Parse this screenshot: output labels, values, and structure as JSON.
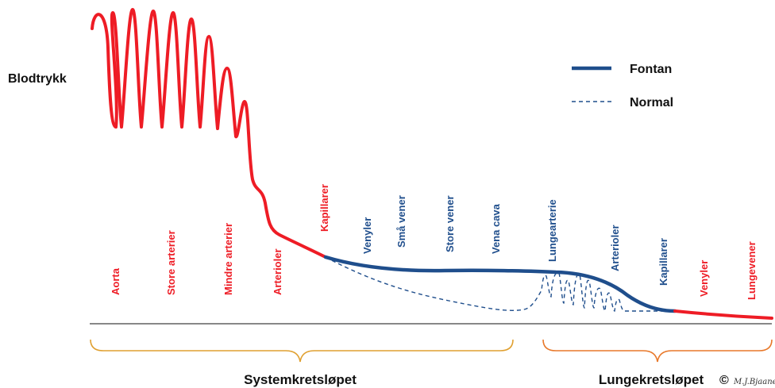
{
  "y_axis_title": "Blodtrykk",
  "legend": {
    "fontan_label": "Fontan",
    "normal_label": "Normal"
  },
  "colors": {
    "red": "#ee1c25",
    "blue": "#1f4e8c",
    "systemic_brace": "#e0a030",
    "pulmonary_brace": "#e8782a"
  },
  "vessels": [
    {
      "label": "Aorta",
      "color": "red"
    },
    {
      "label": "Store arterier",
      "color": "red"
    },
    {
      "label": "Mindre arterier",
      "color": "red"
    },
    {
      "label": "Arterioler",
      "color": "red"
    },
    {
      "label": "Kapillarer",
      "color": "red"
    },
    {
      "label": "Venyler",
      "color": "blue"
    },
    {
      "label": "Små vener",
      "color": "blue"
    },
    {
      "label": "Store vener",
      "color": "blue"
    },
    {
      "label": "Vena cava",
      "color": "blue"
    },
    {
      "label": "Lungearterie",
      "color": "blue"
    },
    {
      "label": "Arterioler",
      "color": "blue"
    },
    {
      "label": "Kapillarer",
      "color": "blue"
    },
    {
      "label": "Venyler",
      "color": "red"
    },
    {
      "label": "Lungevener",
      "color": "red"
    }
  ],
  "circuits": {
    "systemic": "Systemkretsløpet",
    "pulmonary": "Lungekretsløpet"
  },
  "copyright": "©",
  "signature": "M.J.Bjaanes"
}
